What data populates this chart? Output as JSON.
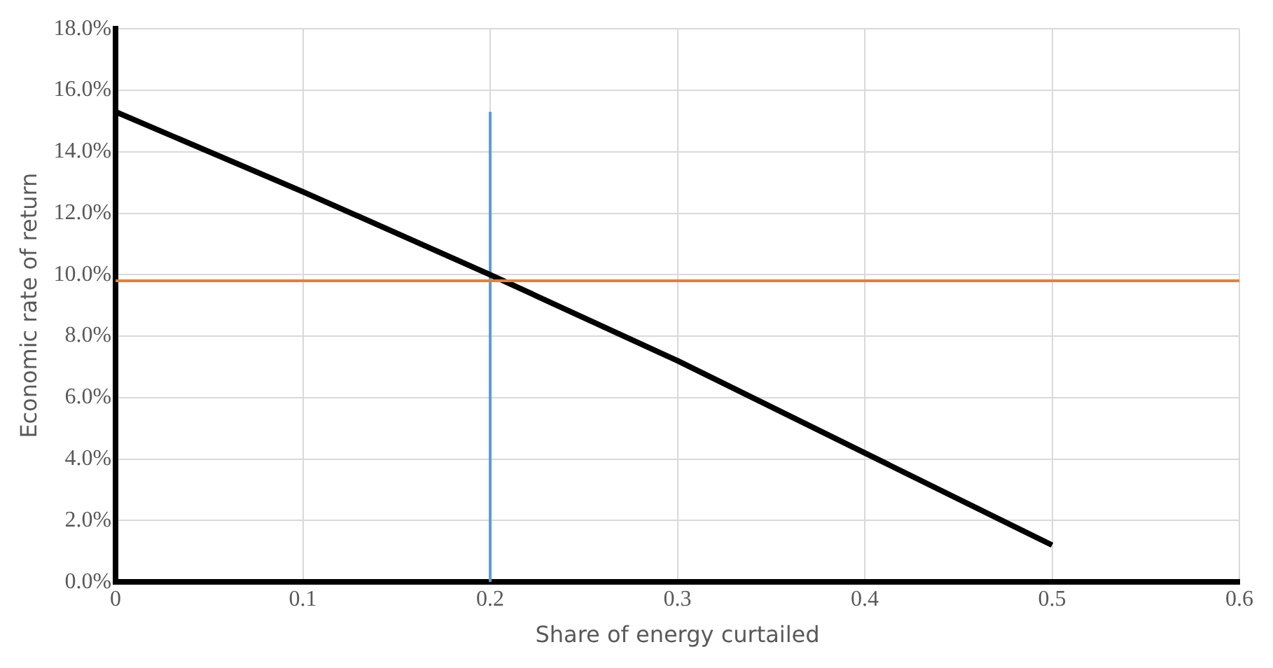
{
  "chart_data": {
    "type": "line",
    "xlabel": "Share of energy curtailed",
    "ylabel": "Economic rate of return",
    "x": [
      0,
      0.1,
      0.2,
      0.3,
      0.4,
      0.5
    ],
    "series": [
      {
        "color": "#000000",
        "values": [
          15.3,
          12.7,
          10.0,
          7.2,
          4.2,
          1.2
        ]
      },
      {
        "type": "line",
        "color": "#5b9bd5",
        "x": [
          0.2,
          0.2
        ],
        "values": [
          0,
          15.3
        ]
      }
    ],
    "ref_lines": [
      {
        "axis": "y",
        "value": 9.8,
        "color": "#ed7d31",
        "line_style": "solid"
      }
    ],
    "xlim": [
      0,
      0.6
    ],
    "xticks": [
      0,
      0.1,
      0.2,
      0.3,
      0.4,
      0.5,
      0.6
    ],
    "ylim": [
      0,
      18
    ],
    "yticks": [
      {
        "value": 0,
        "label": "0.0%"
      },
      {
        "value": 2,
        "label": "2.0%"
      },
      {
        "value": 4,
        "label": "4.0%"
      },
      {
        "value": 6,
        "label": "6.0%"
      },
      {
        "value": 8,
        "label": "8.0%"
      },
      {
        "value": 10,
        "label": "10.0%"
      },
      {
        "value": 12,
        "label": "12.0%"
      },
      {
        "value": 14,
        "label": "14.0%"
      },
      {
        "value": 16,
        "label": "16.0%"
      },
      {
        "value": 18,
        "label": "18.0%"
      }
    ],
    "grid": true,
    "legend": false,
    "marker": "none",
    "line_style": "solid"
  }
}
